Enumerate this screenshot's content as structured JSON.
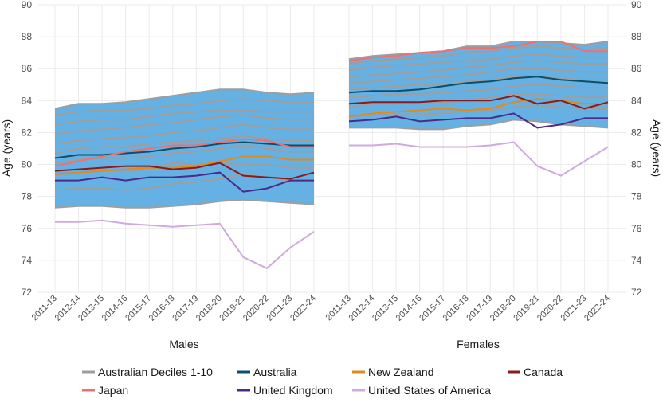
{
  "colors": {
    "band": "#5dade2",
    "deciles": "#9e9e9e",
    "Australia": "#0b4f6c",
    "New Zealand": "#e08a1e",
    "Canada": "#8b1a1a",
    "Japan": "#f07070",
    "United Kingdom": "#4b2a8a",
    "United States of America": "#cfa9e0",
    "grid": "#ebebeb"
  },
  "chart_data": {
    "type": "line",
    "ylabel": "Age (years)",
    "ylim": [
      72,
      90
    ],
    "yticks": [
      72,
      74,
      76,
      78,
      80,
      82,
      84,
      86,
      88,
      90
    ],
    "categories": [
      "2011-13",
      "2012-14",
      "2013-15",
      "2014-16",
      "2015-17",
      "2016-18",
      "2017-19",
      "2018-20",
      "2019-21",
      "2020-22",
      "2021-23",
      "2022-24"
    ],
    "legend": [
      {
        "key": "deciles",
        "label": "Australian Deciles 1-10"
      },
      {
        "key": "Australia",
        "label": "Australia"
      },
      {
        "key": "New Zealand",
        "label": "New Zealand"
      },
      {
        "key": "Canada",
        "label": "Canada"
      },
      {
        "key": "Japan",
        "label": "Japan"
      },
      {
        "key": "United Kingdom",
        "label": "United Kingdom"
      },
      {
        "key": "United States of America",
        "label": "United States of America"
      }
    ],
    "panels": [
      {
        "title": "Males",
        "deciles": [
          [
            77.3,
            77.4,
            77.4,
            77.3,
            77.3,
            77.4,
            77.5,
            77.7,
            77.8,
            77.7,
            77.6,
            77.5
          ],
          [
            78.4,
            78.5,
            78.5,
            78.4,
            78.5,
            78.8,
            78.9,
            79.1,
            79.4,
            79.2,
            79.0,
            78.9
          ],
          [
            79.3,
            79.5,
            79.6,
            79.6,
            79.7,
            80.1,
            80.0,
            80.1,
            80.0,
            80.0,
            79.8,
            79.8
          ],
          [
            80.1,
            80.3,
            80.4,
            80.4,
            80.5,
            80.7,
            80.8,
            81.0,
            81.2,
            81.0,
            80.8,
            80.8
          ],
          [
            80.7,
            81.0,
            81.1,
            81.1,
            81.3,
            81.4,
            81.5,
            81.6,
            81.8,
            81.6,
            81.5,
            81.5
          ],
          [
            81.3,
            81.5,
            81.6,
            81.7,
            81.8,
            82.0,
            82.1,
            82.3,
            82.5,
            82.3,
            82.2,
            82.2
          ],
          [
            81.9,
            82.1,
            82.2,
            82.3,
            82.5,
            82.6,
            82.8,
            83.0,
            83.1,
            82.9,
            82.8,
            82.8
          ],
          [
            82.5,
            82.7,
            82.8,
            82.8,
            83.0,
            83.2,
            83.3,
            83.4,
            83.4,
            83.3,
            83.3,
            83.3
          ],
          [
            83.1,
            83.3,
            83.4,
            83.4,
            83.5,
            83.7,
            83.8,
            84.0,
            84.1,
            84.0,
            83.9,
            83.9
          ],
          [
            83.5,
            83.8,
            83.8,
            83.9,
            84.1,
            84.3,
            84.5,
            84.7,
            84.7,
            84.5,
            84.4,
            84.5
          ]
        ],
        "series": [
          {
            "name": "Australia",
            "values": [
              80.4,
              80.6,
              80.6,
              80.7,
              80.8,
              81.0,
              81.1,
              81.3,
              81.4,
              81.3,
              81.2,
              81.2
            ]
          },
          {
            "name": "New Zealand",
            "values": [
              79.4,
              79.5,
              79.6,
              79.7,
              79.8,
              79.8,
              79.9,
              80.2,
              80.5,
              80.5,
              80.3,
              80.3
            ]
          },
          {
            "name": "Canada",
            "values": [
              79.6,
              79.7,
              79.8,
              79.9,
              79.9,
              79.7,
              79.8,
              80.1,
              79.3,
              79.2,
              79.1,
              79.5
            ]
          },
          {
            "name": "Japan",
            "values": [
              79.9,
              80.2,
              80.5,
              80.8,
              81.0,
              81.2,
              81.2,
              81.4,
              81.6,
              81.5,
              81.1,
              81.1
            ]
          },
          {
            "name": "United Kingdom",
            "values": [
              79.0,
              79.0,
              79.2,
              79.0,
              79.2,
              79.2,
              79.3,
              79.5,
              78.3,
              78.5,
              79.0,
              79.0
            ]
          },
          {
            "name": "United States of America",
            "values": [
              76.4,
              76.4,
              76.5,
              76.3,
              76.2,
              76.1,
              76.2,
              76.3,
              74.2,
              73.5,
              74.8,
              75.8
            ]
          }
        ]
      },
      {
        "title": "Females",
        "deciles": [
          [
            82.3,
            82.3,
            82.3,
            82.2,
            82.2,
            82.4,
            82.5,
            82.8,
            82.7,
            82.5,
            82.4,
            82.3
          ],
          [
            83.0,
            83.1,
            83.1,
            83.1,
            83.2,
            83.4,
            83.4,
            83.6,
            83.7,
            83.6,
            83.5,
            83.5
          ],
          [
            83.6,
            83.8,
            83.8,
            83.9,
            83.9,
            84.0,
            84.2,
            84.4,
            84.4,
            84.3,
            84.2,
            84.2
          ],
          [
            84.2,
            84.3,
            84.4,
            84.4,
            84.5,
            84.6,
            84.7,
            84.9,
            85.0,
            84.9,
            84.8,
            84.8
          ],
          [
            84.7,
            84.8,
            84.9,
            85.0,
            85.0,
            85.2,
            85.3,
            85.5,
            85.5,
            85.4,
            85.3,
            85.3
          ],
          [
            85.1,
            85.2,
            85.3,
            85.4,
            85.5,
            85.6,
            85.8,
            86.0,
            86.0,
            85.9,
            85.8,
            85.8
          ],
          [
            85.5,
            85.6,
            85.7,
            85.8,
            85.9,
            86.1,
            86.2,
            86.4,
            86.5,
            86.4,
            86.3,
            86.3
          ],
          [
            85.9,
            86.1,
            86.2,
            86.3,
            86.4,
            86.5,
            86.6,
            86.8,
            86.9,
            86.8,
            86.7,
            86.7
          ],
          [
            86.3,
            86.5,
            86.6,
            86.7,
            86.8,
            87.0,
            87.1,
            87.3,
            87.4,
            87.3,
            87.2,
            87.3
          ],
          [
            86.6,
            86.8,
            86.9,
            87.0,
            87.1,
            87.4,
            87.4,
            87.7,
            87.7,
            87.6,
            87.5,
            87.7
          ]
        ],
        "series": [
          {
            "name": "Australia",
            "values": [
              84.5,
              84.6,
              84.6,
              84.7,
              84.9,
              85.1,
              85.2,
              85.4,
              85.5,
              85.3,
              85.2,
              85.1
            ]
          },
          {
            "name": "New Zealand",
            "values": [
              83.0,
              83.2,
              83.3,
              83.4,
              83.5,
              83.4,
              83.5,
              83.9,
              84.1,
              84.0,
              83.8,
              83.8
            ]
          },
          {
            "name": "Canada",
            "values": [
              83.8,
              83.9,
              83.9,
              83.9,
              84.0,
              84.0,
              84.0,
              84.3,
              83.8,
              84.0,
              83.5,
              83.9
            ]
          },
          {
            "name": "Japan",
            "values": [
              86.5,
              86.7,
              86.8,
              87.0,
              87.1,
              87.3,
              87.3,
              87.4,
              87.7,
              87.7,
              87.1,
              87.1
            ]
          },
          {
            "name": "United Kingdom",
            "values": [
              82.7,
              82.8,
              83.0,
              82.7,
              82.8,
              82.9,
              82.9,
              83.2,
              82.3,
              82.5,
              82.9,
              82.9
            ]
          },
          {
            "name": "United States of America",
            "values": [
              81.2,
              81.2,
              81.3,
              81.1,
              81.1,
              81.1,
              81.2,
              81.4,
              79.9,
              79.3,
              80.2,
              81.1
            ]
          }
        ]
      }
    ]
  }
}
